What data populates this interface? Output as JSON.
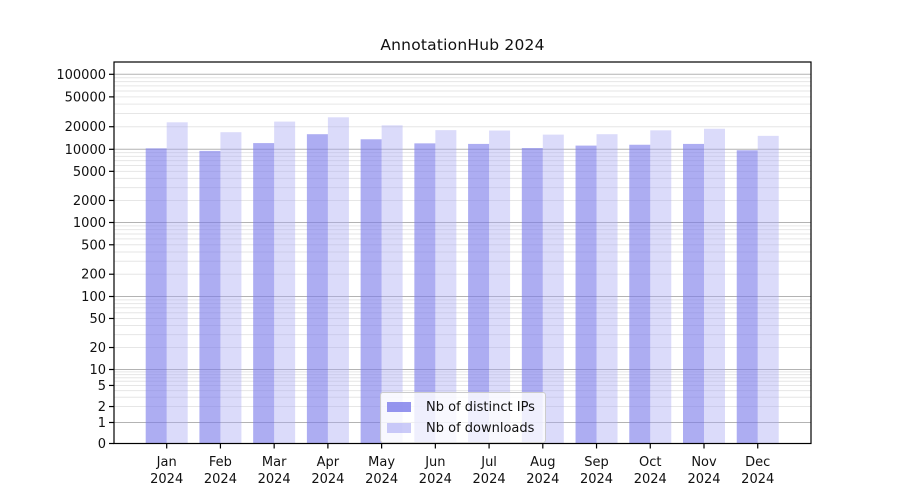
{
  "chart_data": {
    "type": "bar",
    "title": "AnnotationHub 2024",
    "categories": [
      "Jan",
      "Feb",
      "Mar",
      "Apr",
      "May",
      "Jun",
      "Jul",
      "Aug",
      "Sep",
      "Oct",
      "Nov",
      "Dec"
    ],
    "category_year": "2024",
    "series": [
      {
        "name": "Nb of distinct IPs",
        "values": [
          10300,
          9500,
          12100,
          15900,
          13600,
          12000,
          11800,
          10400,
          11200,
          11500,
          11800,
          9700
        ],
        "fill": "#7b7bea",
        "alpha": 0.62
      },
      {
        "name": "Nb of downloads",
        "values": [
          22900,
          16900,
          23400,
          26700,
          20900,
          18000,
          17800,
          15700,
          15900,
          17900,
          18800,
          15100
        ],
        "fill": "#a9a9f4",
        "alpha": 0.42
      }
    ],
    "yscale": "symlog",
    "yticks": [
      0,
      1,
      2,
      5,
      10,
      20,
      50,
      100,
      200,
      500,
      1000,
      2000,
      5000,
      10000,
      20000,
      50000,
      100000
    ],
    "ylim": [
      0,
      145000
    ],
    "grid": true,
    "legend_position": "lower-center",
    "colors": {
      "major_gridline": "#b3b3b3",
      "minor_gridline": "#e6e6e6",
      "axis": "#000000",
      "text": "#111111"
    }
  }
}
